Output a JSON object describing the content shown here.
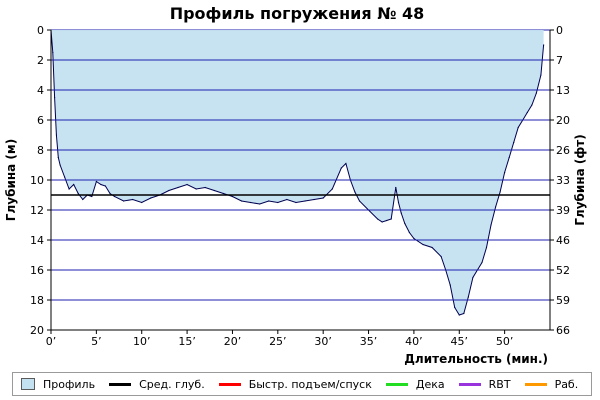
{
  "chart_data": {
    "type": "area",
    "title": "Профиль погружения № 48",
    "xlabel": "Длительность (мин.)",
    "ylabel_left": "Глубина (м)",
    "ylabel_right": "Глубина (фт)",
    "xlim": [
      0,
      55
    ],
    "ylim_m": [
      0,
      20
    ],
    "x_ticks": [
      0,
      5,
      10,
      15,
      20,
      25,
      30,
      35,
      40,
      45,
      50
    ],
    "x_tick_labels": [
      "0’",
      "5’",
      "10’",
      "15’",
      "20’",
      "25’",
      "30’",
      "35’",
      "40’",
      "45’",
      "50’"
    ],
    "y_ticks_m": [
      0,
      2,
      4,
      6,
      8,
      10,
      12,
      14,
      16,
      18,
      20
    ],
    "y_ticks_ft_labels": [
      "0",
      "7",
      "13",
      "20",
      "26",
      "33",
      "39",
      "46",
      "52",
      "59",
      "66"
    ],
    "avg_depth_m": 11.0,
    "grid": true,
    "series": [
      {
        "name": "Профиль",
        "x": [
          0,
          0.2,
          0.4,
          0.6,
          0.8,
          1.0,
          1.5,
          2.0,
          2.5,
          3.0,
          3.5,
          4.0,
          4.5,
          5.0,
          5.5,
          6.0,
          6.5,
          7.0,
          8.0,
          9.0,
          10.0,
          11.0,
          12.0,
          13.0,
          14.0,
          15.0,
          16.0,
          17.0,
          18.0,
          19.0,
          20.0,
          21.0,
          22.0,
          23.0,
          24.0,
          25.0,
          26.0,
          27.0,
          28.0,
          29.0,
          30.0,
          31.0,
          32.0,
          32.5,
          33.0,
          33.5,
          34.0,
          35.0,
          36.0,
          36.5,
          37.0,
          37.5,
          38.0,
          38.3,
          38.6,
          39.0,
          39.5,
          40.0,
          41.0,
          42.0,
          43.0,
          43.5,
          44.0,
          44.5,
          45.0,
          45.5,
          46.0,
          46.5,
          47.0,
          47.5,
          48.0,
          48.5,
          49.0,
          49.5,
          50.0,
          50.5,
          51.0,
          51.5,
          52.0,
          52.5,
          53.0,
          53.5,
          54.0,
          54.3
        ],
        "depth_m": [
          0,
          1.5,
          4.5,
          7.0,
          8.5,
          9.0,
          9.8,
          10.6,
          10.3,
          10.9,
          11.3,
          11.0,
          11.1,
          10.1,
          10.3,
          10.4,
          10.9,
          11.1,
          11.4,
          11.3,
          11.5,
          11.2,
          11.0,
          10.7,
          10.5,
          10.3,
          10.6,
          10.5,
          10.7,
          10.9,
          11.1,
          11.4,
          11.5,
          11.6,
          11.4,
          11.5,
          11.3,
          11.5,
          11.4,
          11.3,
          11.2,
          10.6,
          9.2,
          8.9,
          10.0,
          10.8,
          11.4,
          12.0,
          12.6,
          12.8,
          12.7,
          12.6,
          10.5,
          11.5,
          12.2,
          12.9,
          13.5,
          13.9,
          14.3,
          14.5,
          15.1,
          16.0,
          17.0,
          18.5,
          19.0,
          18.9,
          17.8,
          16.5,
          16.0,
          15.5,
          14.5,
          13.0,
          11.8,
          10.8,
          9.5,
          8.5,
          7.5,
          6.5,
          6.0,
          5.5,
          5.0,
          4.2,
          3.0,
          1.0
        ]
      }
    ],
    "colors": {
      "profile_fill": "#c4e1f1",
      "profile_line": "#000050",
      "grid": "#1f1fb0",
      "avg_depth": "#000000",
      "fast_ascent": "#ff0000",
      "deco": "#22dd22",
      "rbt": "#9933dd",
      "work": "#ff9900"
    },
    "legend": [
      {
        "label": "Профиль",
        "kind": "box",
        "color": "#c4e1f1"
      },
      {
        "label": "Сред. глуб.",
        "kind": "line",
        "color": "#000000"
      },
      {
        "label": "Быстр. подъем/спуск",
        "kind": "line",
        "color": "#ff0000"
      },
      {
        "label": "Дека",
        "kind": "line",
        "color": "#22dd22"
      },
      {
        "label": "RBT",
        "kind": "line",
        "color": "#9933dd"
      },
      {
        "label": "Раб.",
        "kind": "line",
        "color": "#ff9900"
      }
    ]
  }
}
